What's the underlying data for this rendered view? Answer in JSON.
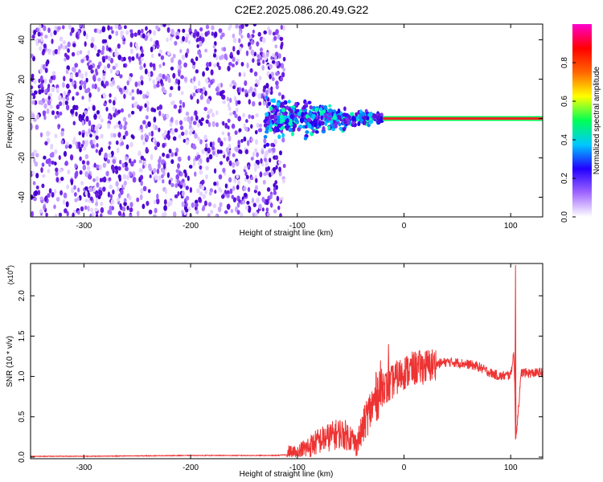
{
  "figure_title": "C2E2.2025.086.20.49.G22",
  "chart_data": [
    {
      "type": "heatmap",
      "xlabel": "Height of straight line (km)",
      "ylabel": "Frequency (Hz)",
      "xlim": [
        -350,
        130
      ],
      "ylim": [
        -50,
        48
      ],
      "xticks": [
        -300,
        -200,
        -100,
        0,
        100
      ],
      "yticks": [
        -40,
        -20,
        0,
        20,
        40
      ],
      "colorbar": {
        "label": "Normalized spectral amplitude",
        "range": [
          0,
          1
        ],
        "ticks": [
          "0.0",
          "0.2",
          "0.4",
          "0.6",
          "0.8"
        ],
        "colormap": [
          "#ffffff",
          "#a066ff",
          "#2200ff",
          "#00c8ff",
          "#00ff55",
          "#ffff00",
          "#ff6600",
          "#ff0000",
          "#ff00cc"
        ]
      },
      "features": {
        "noise_region_x": [
          -350,
          -112
        ],
        "transition_region_x": [
          -130,
          -20
        ],
        "signal_line_x": [
          -20,
          130
        ],
        "signal_frequency": 0,
        "dominant_color": "#6a1fe0",
        "signal_color": "#ff2222"
      }
    },
    {
      "type": "line",
      "xlabel": "Height of straight line (km)",
      "ylabel": "SNR (10 * v/v)",
      "y_multiplier": "(x10",
      "y_multiplier_exp": "4",
      "y_multiplier_close": ")",
      "xlim": [
        -350,
        130
      ],
      "ylim": [
        -0.02,
        2.4
      ],
      "xticks": [
        -300,
        -200,
        -100,
        0,
        100
      ],
      "yticks": [
        "0.0",
        "0.5",
        "1.0",
        "1.5",
        "2.0"
      ],
      "yticks_values": [
        0,
        0.5,
        1.0,
        1.5,
        2.0
      ],
      "color": "#ee3333",
      "x": [
        -350,
        -300,
        -250,
        -200,
        -150,
        -120,
        -100,
        -90,
        -80,
        -70,
        -60,
        -50,
        -45,
        -40,
        -35,
        -30,
        -25,
        -20,
        -15,
        -10,
        0,
        10,
        20,
        30,
        40,
        50,
        60,
        70,
        80,
        90,
        100,
        103,
        105,
        110,
        120,
        130
      ],
      "y": [
        0.01,
        0.01,
        0.015,
        0.02,
        0.02,
        0.02,
        0.04,
        0.12,
        0.2,
        0.25,
        0.3,
        0.25,
        0.15,
        0.3,
        0.5,
        0.62,
        0.78,
        0.9,
        0.85,
        0.95,
        1.05,
        1.1,
        1.12,
        1.15,
        1.18,
        1.17,
        1.15,
        1.12,
        1.05,
        1.0,
        1.02,
        1.3,
        0.25,
        1.05,
        1.04,
        1.05
      ],
      "spikes": [
        {
          "x": -15,
          "y": 1.4
        },
        {
          "x": -20,
          "y": 1.02
        },
        {
          "x": 104,
          "y": 2.38
        },
        {
          "x": 104,
          "y": 0.22
        }
      ]
    }
  ]
}
